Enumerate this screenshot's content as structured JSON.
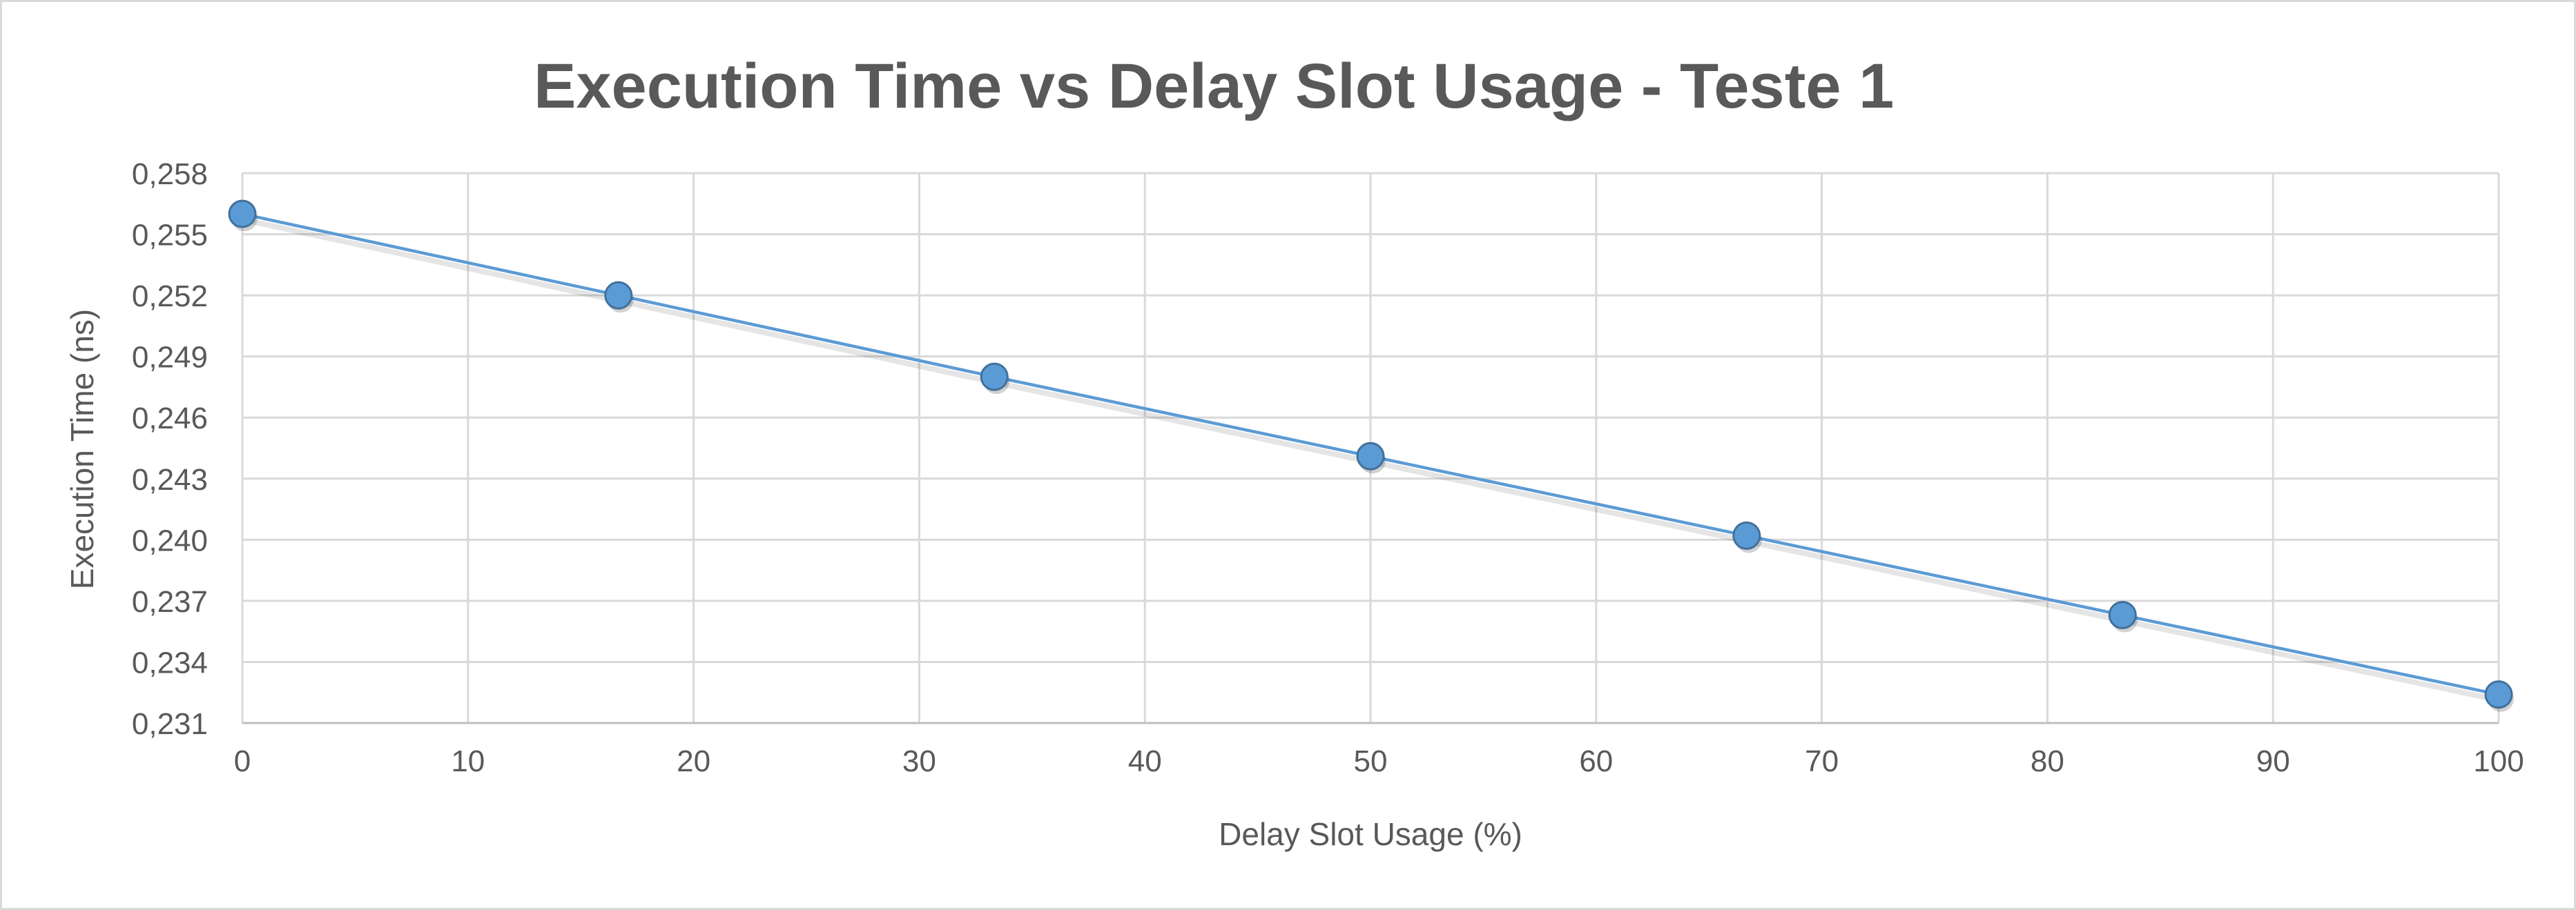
{
  "chart_data": {
    "type": "scatter",
    "title": "Execution Time vs Delay Slot Usage - Teste 1",
    "xlabel": "Delay Slot Usage (%)",
    "ylabel": "Execution Time (ns)",
    "xlim": [
      0,
      100
    ],
    "ylim": [
      0.231,
      0.258
    ],
    "x_ticks": [
      "0",
      "10",
      "20",
      "30",
      "40",
      "50",
      "60",
      "70",
      "80",
      "90",
      "100"
    ],
    "y_ticks": [
      "0,231",
      "0,234",
      "0,237",
      "0,240",
      "0,243",
      "0,246",
      "0,249",
      "0,252",
      "0,255",
      "0,258"
    ],
    "x_tick_values": [
      0,
      10,
      20,
      30,
      40,
      50,
      60,
      70,
      80,
      90,
      100
    ],
    "y_tick_values": [
      0.231,
      0.234,
      0.237,
      0.24,
      0.243,
      0.246,
      0.249,
      0.252,
      0.255,
      0.258
    ],
    "grid": true,
    "legend": "none",
    "series": [
      {
        "x": [
          0,
          16.67,
          33.33,
          50,
          66.67,
          83.33,
          100
        ],
        "y": [
          0.256,
          0.252,
          0.248,
          0.2441,
          0.2402,
          0.2363,
          0.2324
        ],
        "color": "#5b9bd5",
        "line": "straight"
      }
    ]
  }
}
